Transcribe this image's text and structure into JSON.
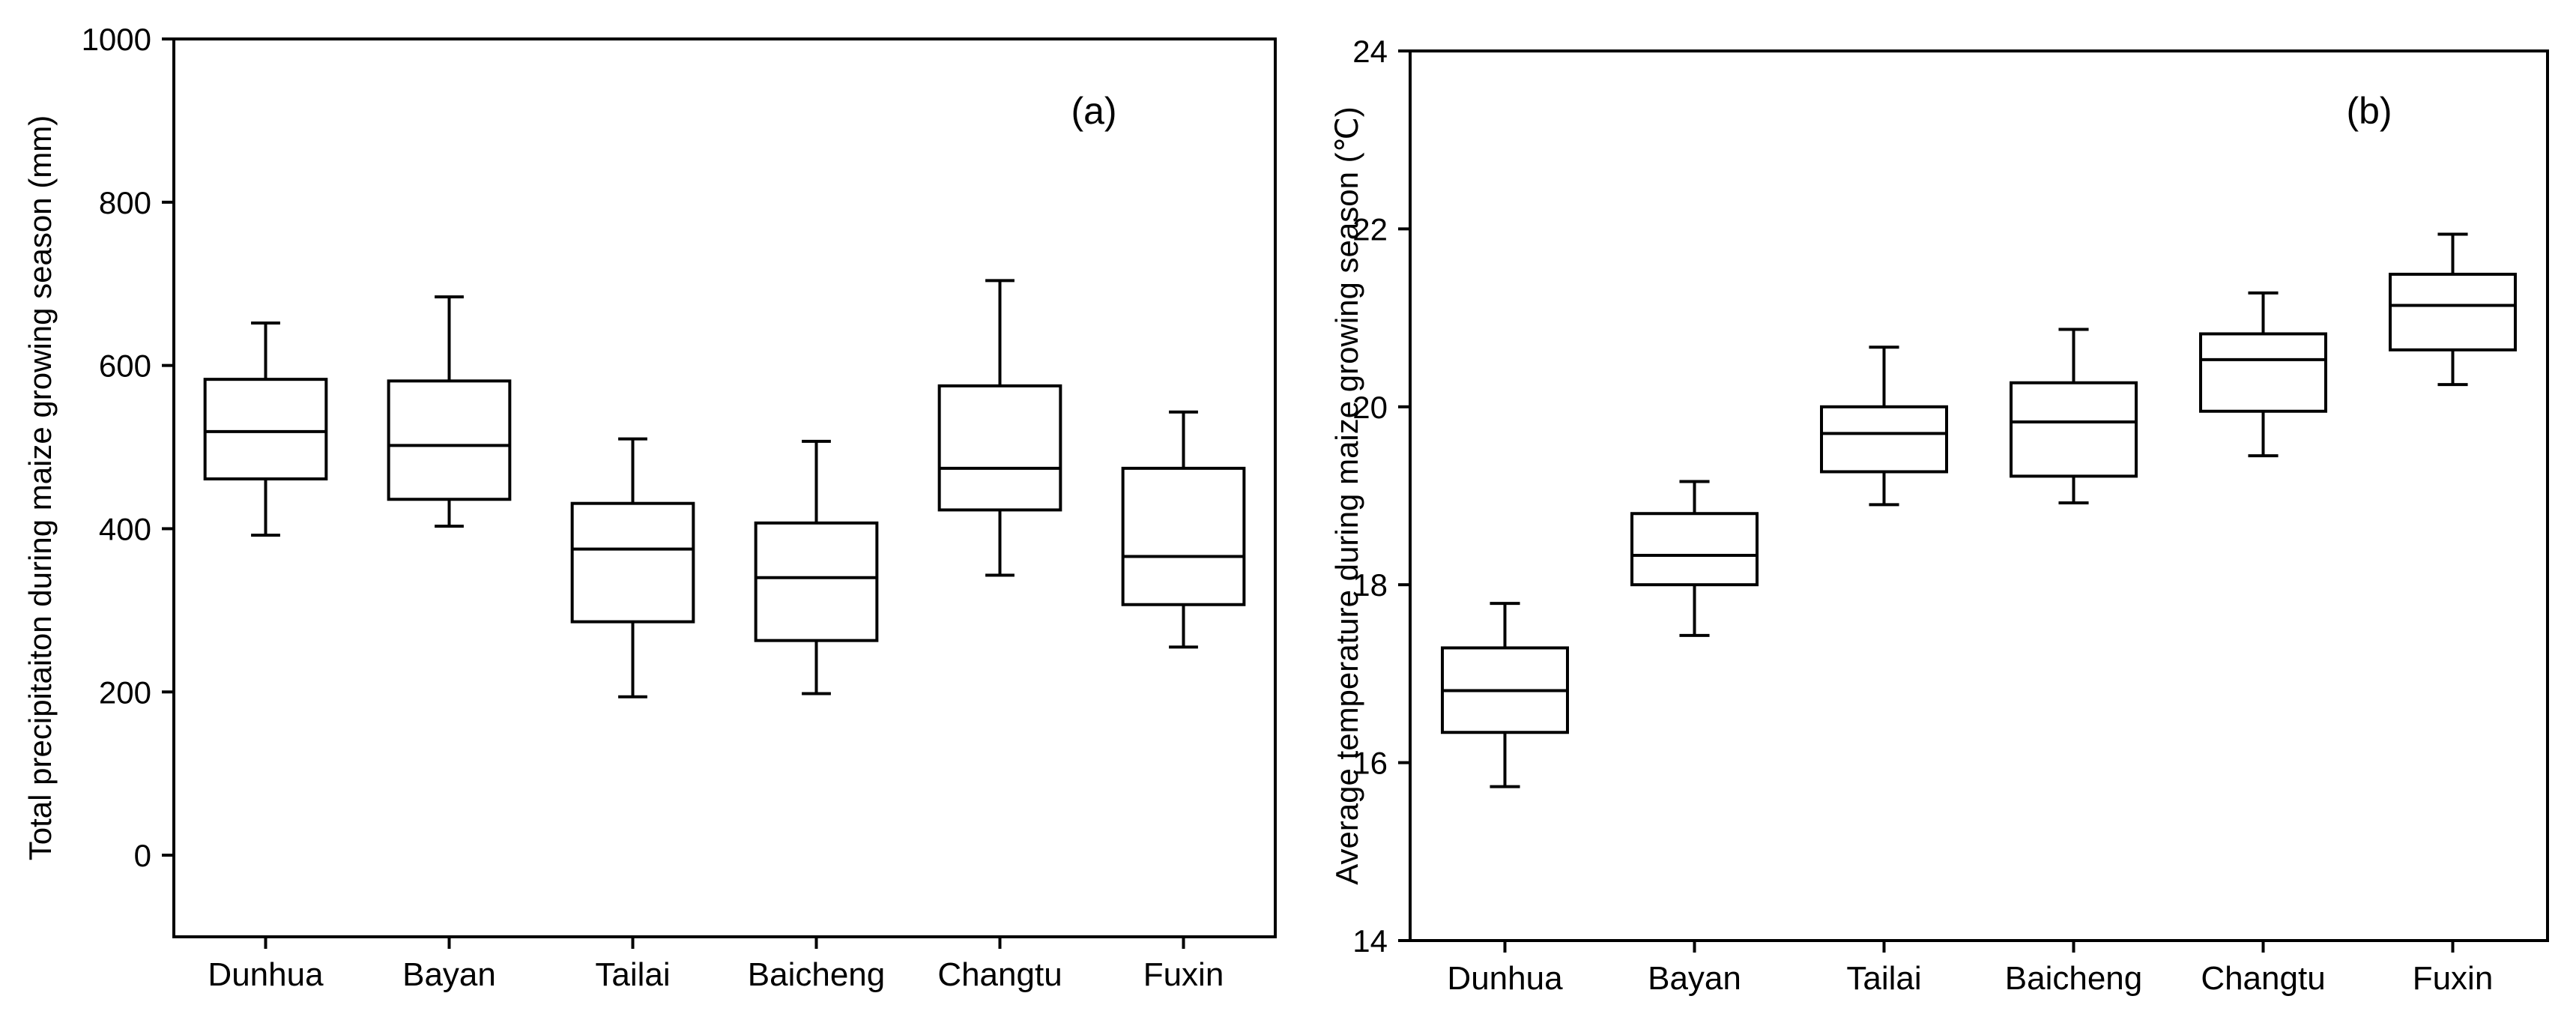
{
  "chart_data": [
    {
      "type": "box",
      "panel_tag": "(a)",
      "ylabel": "Total precipitaiton during maize growing season (mm)",
      "ylim": [
        -100,
        1000
      ],
      "yticks": [
        0,
        200,
        400,
        600,
        800,
        1000
      ],
      "categories": [
        "Dunhua",
        "Bayan",
        "Tailai",
        "Baicheng",
        "Changtu",
        "Fuxin"
      ],
      "boxes": [
        {
          "whisker_low": 392,
          "q1": 461,
          "median": 519,
          "q3": 583,
          "whisker_high": 652
        },
        {
          "whisker_low": 403,
          "q1": 436,
          "median": 502,
          "q3": 581,
          "whisker_high": 684
        },
        {
          "whisker_low": 194,
          "q1": 286,
          "median": 375,
          "q3": 431,
          "whisker_high": 510
        },
        {
          "whisker_low": 198,
          "q1": 263,
          "median": 340,
          "q3": 407,
          "whisker_high": 507
        },
        {
          "whisker_low": 343,
          "q1": 423,
          "median": 474,
          "q3": 575,
          "whisker_high": 704
        },
        {
          "whisker_low": 255,
          "q1": 307,
          "median": 366,
          "q3": 474,
          "whisker_high": 543
        }
      ]
    },
    {
      "type": "box",
      "panel_tag": "(b)",
      "ylabel": "Average temperature during maize growing season (℃)",
      "ylim": [
        14,
        24
      ],
      "yticks": [
        14,
        16,
        18,
        20,
        22,
        24
      ],
      "categories": [
        "Dunhua",
        "Bayan",
        "Tailai",
        "Baicheng",
        "Changtu",
        "Fuxin"
      ],
      "boxes": [
        {
          "whisker_low": 15.73,
          "q1": 16.34,
          "median": 16.81,
          "q3": 17.29,
          "whisker_high": 17.79
        },
        {
          "whisker_low": 17.43,
          "q1": 18.0,
          "median": 18.33,
          "q3": 18.8,
          "whisker_high": 19.16
        },
        {
          "whisker_low": 18.9,
          "q1": 19.27,
          "median": 19.7,
          "q3": 20.0,
          "whisker_high": 20.67
        },
        {
          "whisker_low": 18.92,
          "q1": 19.22,
          "median": 19.83,
          "q3": 20.27,
          "whisker_high": 20.87
        },
        {
          "whisker_low": 19.45,
          "q1": 19.95,
          "median": 20.53,
          "q3": 20.82,
          "whisker_high": 21.28
        },
        {
          "whisker_low": 20.25,
          "q1": 20.64,
          "median": 21.14,
          "q3": 21.49,
          "whisker_high": 21.94
        }
      ]
    }
  ]
}
